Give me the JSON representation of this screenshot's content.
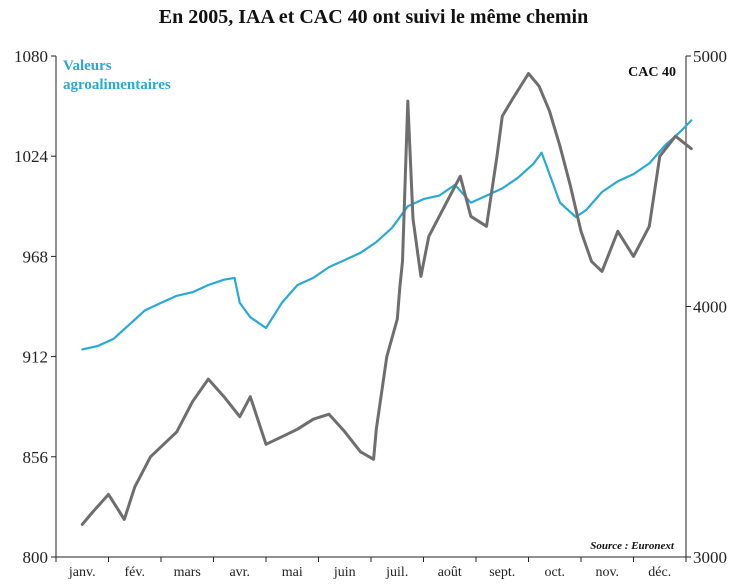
{
  "chart_data": {
    "type": "line",
    "title": "En 2005, IAA et CAC 40 ont suivi le même chemin",
    "categories": [
      "janv.",
      "fév.",
      "mars",
      "avr.",
      "mai",
      "juin",
      "juil.",
      "août",
      "sept.",
      "oct.",
      "nov.",
      "déc."
    ],
    "left_axis": {
      "ticks": [
        "1080",
        "1024",
        "968",
        "912",
        "856",
        "800"
      ],
      "ylim": [
        800,
        1080
      ]
    },
    "right_axis": {
      "ticks": [
        "5000",
        "4000",
        "3000"
      ],
      "ylim": [
        3000,
        5000
      ]
    },
    "source": "Source : Euronext",
    "series": [
      {
        "name": "Valeurs agroalimentaires",
        "axis": "left",
        "color": "#29a9d6",
        "x": [
          0,
          0.3,
          0.6,
          0.9,
          1.2,
          1.5,
          1.8,
          2.1,
          2.4,
          2.7,
          2.9,
          3.0,
          3.2,
          3.5,
          3.8,
          4.1,
          4.4,
          4.7,
          5.0,
          5.3,
          5.6,
          5.9,
          6.2,
          6.5,
          6.8,
          7.1,
          7.4,
          7.7,
          8.0,
          8.3,
          8.6,
          8.75,
          8.9,
          9.1,
          9.4,
          9.6,
          9.9,
          10.2,
          10.5,
          10.8,
          11.1,
          11.4,
          11.6
        ],
        "values": [
          916,
          918,
          922,
          930,
          938,
          942,
          946,
          948,
          952,
          955,
          956,
          942,
          934,
          928,
          942,
          952,
          956,
          962,
          966,
          970,
          976,
          984,
          996,
          1000,
          1002,
          1008,
          998,
          1002,
          1006,
          1012,
          1020,
          1026,
          1014,
          998,
          990,
          994,
          1004,
          1010,
          1014,
          1020,
          1030,
          1038,
          1044
        ]
      },
      {
        "name": "CAC 40",
        "axis": "right",
        "color": "#6e6e6e",
        "x": [
          0,
          0.2,
          0.5,
          0.8,
          1.0,
          1.3,
          1.6,
          1.8,
          2.1,
          2.4,
          2.7,
          3.0,
          3.2,
          3.5,
          3.8,
          4.1,
          4.4,
          4.7,
          5.0,
          5.3,
          5.55,
          5.6,
          5.8,
          6.0,
          6.05,
          6.1,
          6.2,
          6.3,
          6.45,
          6.6,
          6.9,
          7.2,
          7.4,
          7.7,
          7.9,
          8.0,
          8.2,
          8.5,
          8.7,
          8.9,
          9.1,
          9.3,
          9.5,
          9.7,
          9.9,
          10.2,
          10.5,
          10.8,
          11.0,
          11.3,
          11.6
        ],
        "values": [
          3130,
          3180,
          3250,
          3150,
          3280,
          3400,
          3460,
          3500,
          3620,
          3710,
          3640,
          3560,
          3640,
          3450,
          3480,
          3510,
          3550,
          3570,
          3500,
          3420,
          3390,
          3510,
          3800,
          3950,
          4080,
          4180,
          4820,
          4350,
          4120,
          4280,
          4400,
          4520,
          4360,
          4320,
          4600,
          4760,
          4830,
          4930,
          4880,
          4780,
          4640,
          4480,
          4300,
          4180,
          4140,
          4300,
          4200,
          4320,
          4600,
          4680,
          4630
        ]
      }
    ]
  }
}
